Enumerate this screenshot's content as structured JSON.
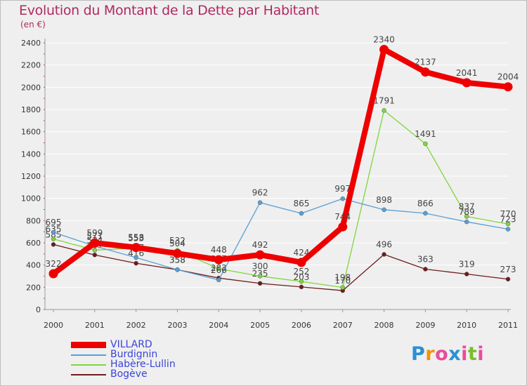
{
  "header": {
    "title": "Evolution du Montant de la Dette par Habitant",
    "subtitle": "(en €)"
  },
  "logo": {
    "text": "Proxiti",
    "letters": [
      "P",
      "r",
      "o",
      "x",
      "i",
      "t",
      "i"
    ],
    "letter_colors": [
      "#2a8fd6",
      "#f29400",
      "#e84d9a",
      "#2a8fd6",
      "#e84d9a",
      "#7bbd2b",
      "#e84d9a"
    ]
  },
  "chart_data": {
    "type": "line",
    "title": "Evolution du Montant de la Dette par Habitant",
    "subtitle": "(en €)",
    "xlabel": "",
    "ylabel": "",
    "ylim": [
      0,
      2400
    ],
    "yticks": [
      0,
      200,
      400,
      600,
      800,
      1000,
      1200,
      1400,
      1600,
      1800,
      2000,
      2200,
      2400
    ],
    "categories": [
      "2000",
      "2001",
      "2002",
      "2003",
      "2004",
      "2005",
      "2006",
      "2007",
      "2008",
      "2009",
      "2010",
      "2011"
    ],
    "grid": "horizontal",
    "legend_position": "bottom-left",
    "series": [
      {
        "name": "Bogève",
        "color": "#6e1c1c",
        "values": [
          585,
          491,
          416,
          358,
          283,
          235,
          203,
          170,
          496,
          363,
          319,
          273
        ],
        "labels": [
          "585",
          "491",
          "416",
          "358",
          "283",
          "235",
          "203",
          "170",
          "496",
          "363",
          "319",
          "273"
        ]
      },
      {
        "name": "Habère-Lullin",
        "color": "#7fd63c",
        "values": [
          635,
          534,
          553,
          532,
          367,
          300,
          252,
          198,
          1791,
          1491,
          837,
          770
        ],
        "labels": [
          "635",
          "534",
          "553",
          "532",
          "367",
          "300",
          "252",
          "198",
          "1791",
          "1491",
          "837",
          "770"
        ]
      },
      {
        "name": "Burdignin",
        "color": "#5a9fd4",
        "values": [
          695,
          571,
          467,
          358,
          266,
          962,
          865,
          997,
          898,
          866,
          789,
          723
        ],
        "labels": [
          "695",
          "571",
          "467",
          "358",
          "266",
          "962",
          "865",
          "997",
          "898",
          "866",
          "789",
          "723"
        ]
      },
      {
        "name": "VILLARD",
        "color": "#ee0000",
        "values": [
          322,
          599,
          558,
          504,
          448,
          492,
          424,
          744,
          2340,
          2137,
          2041,
          2004
        ],
        "labels": [
          "322",
          "599",
          "558",
          "504",
          "448",
          "492",
          "424",
          "744",
          "2340",
          "2137",
          "2041",
          "2004"
        ]
      }
    ],
    "legend": [
      {
        "name": "VILLARD",
        "color": "#ee0000",
        "thick": true
      },
      {
        "name": "Burdignin",
        "color": "#5a9fd4",
        "thick": false
      },
      {
        "name": "Habère-Lullin",
        "color": "#7fd63c",
        "thick": false
      },
      {
        "name": "Bogève",
        "color": "#6e1c1c",
        "thick": false
      }
    ]
  }
}
